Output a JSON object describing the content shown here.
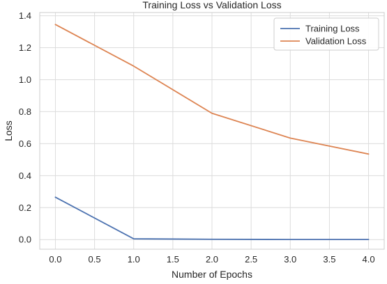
{
  "chart_data": {
    "type": "line",
    "title": "Training Loss vs Validation Loss",
    "xlabel": "Number of Epochs",
    "ylabel": "Loss",
    "x": [
      0,
      1,
      2,
      3,
      4
    ],
    "xlim": [
      -0.2,
      4.2
    ],
    "ylim": [
      -0.06,
      1.42
    ],
    "xticks": [
      "0.0",
      "0.5",
      "1.0",
      "1.5",
      "2.0",
      "2.5",
      "3.0",
      "3.5",
      "4.0"
    ],
    "yticks": [
      "0.0",
      "0.2",
      "0.4",
      "0.6",
      "0.8",
      "1.0",
      "1.2",
      "1.4"
    ],
    "grid": true,
    "legend_position": "top-right",
    "series": [
      {
        "name": "Training Loss",
        "color": "#4c72b0",
        "values": [
          0.265,
          0.005,
          0.002,
          0.001,
          0.001
        ]
      },
      {
        "name": "Validation Loss",
        "color": "#dd8452",
        "values": [
          1.345,
          1.085,
          0.79,
          0.635,
          0.535
        ]
      }
    ]
  }
}
